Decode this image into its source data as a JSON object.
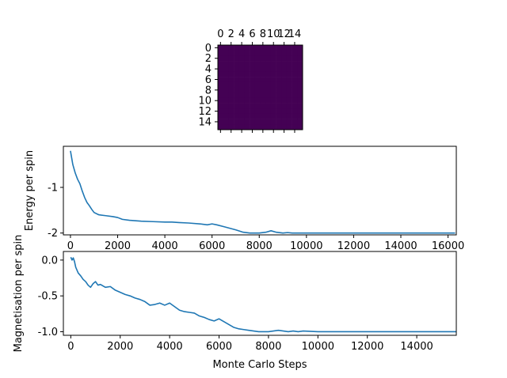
{
  "colors": {
    "line": "#1f77b4",
    "heatmap_cell": "#440154",
    "axis": "#000000",
    "background": "#ffffff"
  },
  "chart_data": [
    {
      "type": "heatmap",
      "title": "",
      "grid_size": 16,
      "value": "uniform",
      "x_ticks": [
        "0",
        "2",
        "4",
        "6",
        "8",
        "10",
        "12",
        "14"
      ],
      "y_ticks": [
        "0",
        "2",
        "4",
        "6",
        "8",
        "10",
        "12",
        "14"
      ],
      "x_ticks_position": "top",
      "xlim": [
        -0.5,
        15.5
      ],
      "ylim": [
        -0.5,
        15.5
      ]
    },
    {
      "type": "line",
      "title": "",
      "xlabel": "",
      "ylabel": "Energy per spin",
      "xlim": [
        -300,
        16350
      ],
      "ylim": [
        -2.04,
        -0.1
      ],
      "x_ticks": [
        "0",
        "2000",
        "4000",
        "6000",
        "8000",
        "10000",
        "12000",
        "14000",
        "16000"
      ],
      "y_ticks": [
        "-1",
        "-2"
      ],
      "x": [
        0,
        50,
        100,
        200,
        300,
        400,
        500,
        600,
        700,
        800,
        900,
        1000,
        1200,
        1500,
        1800,
        2000,
        2200,
        2500,
        3000,
        3500,
        4000,
        4300,
        4600,
        5000,
        5500,
        5800,
        6000,
        6200,
        6500,
        7000,
        7300,
        7600,
        8000,
        8300,
        8500,
        8700,
        9000,
        9200,
        9400,
        10000,
        12000,
        14000,
        16300
      ],
      "y": [
        -0.2,
        -0.35,
        -0.5,
        -0.68,
        -0.82,
        -0.92,
        -1.08,
        -1.22,
        -1.33,
        -1.4,
        -1.48,
        -1.55,
        -1.6,
        -1.62,
        -1.64,
        -1.66,
        -1.7,
        -1.72,
        -1.74,
        -1.75,
        -1.76,
        -1.76,
        -1.77,
        -1.78,
        -1.8,
        -1.82,
        -1.8,
        -1.82,
        -1.86,
        -1.93,
        -1.98,
        -2.0,
        -2.0,
        -1.98,
        -1.95,
        -1.98,
        -2.0,
        -1.99,
        -2.0,
        -2.0,
        -2.0,
        -2.0,
        -2.0
      ]
    },
    {
      "type": "line",
      "title": "",
      "xlabel": "Monte Carlo Steps",
      "ylabel": "Magnetisation per spin",
      "xlim": [
        -300,
        15600
      ],
      "ylim": [
        -1.05,
        0.12
      ],
      "x_ticks": [
        "0",
        "2000",
        "4000",
        "6000",
        "8000",
        "10000",
        "12000",
        "14000"
      ],
      "y_ticks": [
        "0.0",
        "-0.5",
        "-1.0"
      ],
      "x": [
        0,
        50,
        100,
        150,
        200,
        300,
        400,
        500,
        600,
        700,
        800,
        900,
        1000,
        1100,
        1200,
        1400,
        1600,
        1800,
        2000,
        2200,
        2400,
        2600,
        2800,
        3000,
        3200,
        3400,
        3600,
        3800,
        4000,
        4200,
        4400,
        4600,
        4800,
        5000,
        5200,
        5400,
        5600,
        5800,
        6000,
        6200,
        6400,
        6600,
        6800,
        7000,
        7200,
        7400,
        7600,
        7800,
        8000,
        8200,
        8400,
        8600,
        8800,
        9000,
        9200,
        9400,
        10000,
        12000,
        14000,
        15600
      ],
      "y": [
        0.04,
        0.0,
        0.03,
        -0.02,
        -0.1,
        -0.18,
        -0.22,
        -0.27,
        -0.3,
        -0.35,
        -0.38,
        -0.33,
        -0.3,
        -0.35,
        -0.34,
        -0.38,
        -0.37,
        -0.42,
        -0.45,
        -0.48,
        -0.5,
        -0.53,
        -0.55,
        -0.58,
        -0.63,
        -0.62,
        -0.6,
        -0.63,
        -0.6,
        -0.65,
        -0.7,
        -0.72,
        -0.73,
        -0.74,
        -0.78,
        -0.8,
        -0.83,
        -0.85,
        -0.82,
        -0.86,
        -0.9,
        -0.94,
        -0.96,
        -0.97,
        -0.98,
        -0.99,
        -1.0,
        -1.0,
        -1.0,
        -0.99,
        -0.98,
        -0.99,
        -1.0,
        -0.99,
        -1.0,
        -0.99,
        -1.0,
        -1.0,
        -1.0,
        -1.0
      ]
    }
  ]
}
